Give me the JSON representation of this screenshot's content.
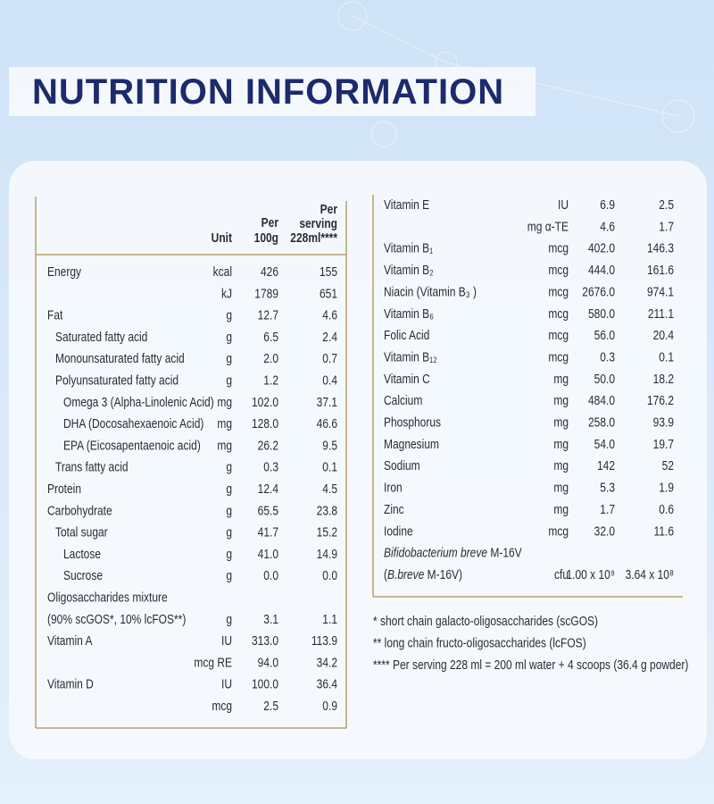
{
  "header": {
    "title": "NUTRITION INFORMATION"
  },
  "left_table": {
    "columns": {
      "unit": "Unit",
      "per_100g": [
        "Per",
        "100g"
      ],
      "per_serving": [
        "Per",
        "serving",
        "228ml****"
      ]
    },
    "rows": [
      [
        "Energy",
        "kcal",
        "426",
        "155"
      ],
      [
        null,
        "kJ",
        "1789",
        "651"
      ],
      [
        "Fat",
        "g",
        "12.7",
        "4.6"
      ],
      [
        "Saturated fatty acid",
        "g",
        "6.5",
        "2.4"
      ],
      [
        "Monounsaturated fatty acid",
        "g",
        "2.0",
        "0.7"
      ],
      [
        "Polyunsaturated fatty acid",
        "g",
        "1.2",
        "0.4"
      ],
      [
        "Omega 3 (Alpha-Linolenic Acid)",
        "mg",
        "102.0",
        "37.1"
      ],
      [
        "DHA (Docosahexaenoic Acid)",
        "mg",
        "128.0",
        "46.6"
      ],
      [
        "EPA (Eicosapentaenoic acid)",
        "mg",
        "26.2",
        "9.5"
      ],
      [
        "Trans fatty acid",
        "g",
        "0.3",
        "0.1"
      ],
      [
        "Protein",
        "g",
        "12.4",
        "4.5"
      ],
      [
        "Carbohydrate",
        "g",
        "65.5",
        "23.8"
      ],
      [
        "Total sugar",
        "g",
        "41.7",
        "15.2"
      ],
      [
        "Lactose",
        "g",
        "41.0",
        "14.9"
      ],
      [
        "Sucrose",
        "g",
        "0.0",
        "0.0"
      ],
      [
        "Oligosaccharides mixture",
        null,
        null,
        null
      ],
      [
        "(90% scGOS*, 10% lcFOS**)",
        "g",
        "3.1",
        "1.1"
      ],
      [
        "Vitamin A",
        "IU",
        "313.0",
        "113.9"
      ],
      [
        null,
        "mcg RE",
        "94.0",
        "34.2"
      ],
      [
        "Vitamin D",
        "IU",
        "100.0",
        "36.4"
      ],
      [
        null,
        "mcg",
        "2.5",
        "0.9"
      ]
    ]
  },
  "right_table": {
    "rows": [
      [
        "Vitamin E",
        "IU",
        "6.9",
        "2.5"
      ],
      [
        null,
        "mg α-TE",
        "4.6",
        "1.7"
      ],
      [
        "Vitamin B₁",
        "mcg",
        "402.0",
        "146.3"
      ],
      [
        "Vitamin B₂",
        "mcg",
        "444.0",
        "161.6"
      ],
      [
        "Niacin (Vitamin B₃ )",
        "mcg",
        "2676.0",
        "974.1"
      ],
      [
        "Vitamin B₆",
        "mcg",
        "580.0",
        "211.1"
      ],
      [
        "Folic Acid",
        "mcg",
        "56.0",
        "20.4"
      ],
      [
        "Vitamin B₁₂",
        "mcg",
        "0.3",
        "0.1"
      ],
      [
        "Vitamin C",
        "mg",
        "50.0",
        "18.2"
      ],
      [
        "Calcium",
        "mg",
        "484.0",
        "176.2"
      ],
      [
        "Phosphorus",
        "mg",
        "258.0",
        "93.9"
      ],
      [
        "Magnesium",
        "mg",
        "54.0",
        "19.7"
      ],
      [
        "Sodium",
        "mg",
        "142",
        "52"
      ],
      [
        "Iron",
        "mg",
        "5.3",
        "1.9"
      ],
      [
        "Zinc",
        "mg",
        "1.7",
        "0.6"
      ],
      [
        "Iodine",
        "mcg",
        "32.0",
        "11.6"
      ],
      [
        [
          "Bifidobacterium breve",
          " M-16V"
        ],
        null,
        null,
        null
      ],
      [
        [
          "(",
          "B.breve",
          " M-16V)"
        ],
        "cfu",
        "1.00 x 10⁹",
        "3.64 x 10⁸"
      ]
    ]
  },
  "footnotes": [
    "* short chain galacto-oligosaccharides (scGOS)",
    "** long chain fructo-oligosaccharides (lcFOS)",
    "**** Per serving 228 ml = 200 ml water + 4 scoops (36.4 g powder)"
  ]
}
